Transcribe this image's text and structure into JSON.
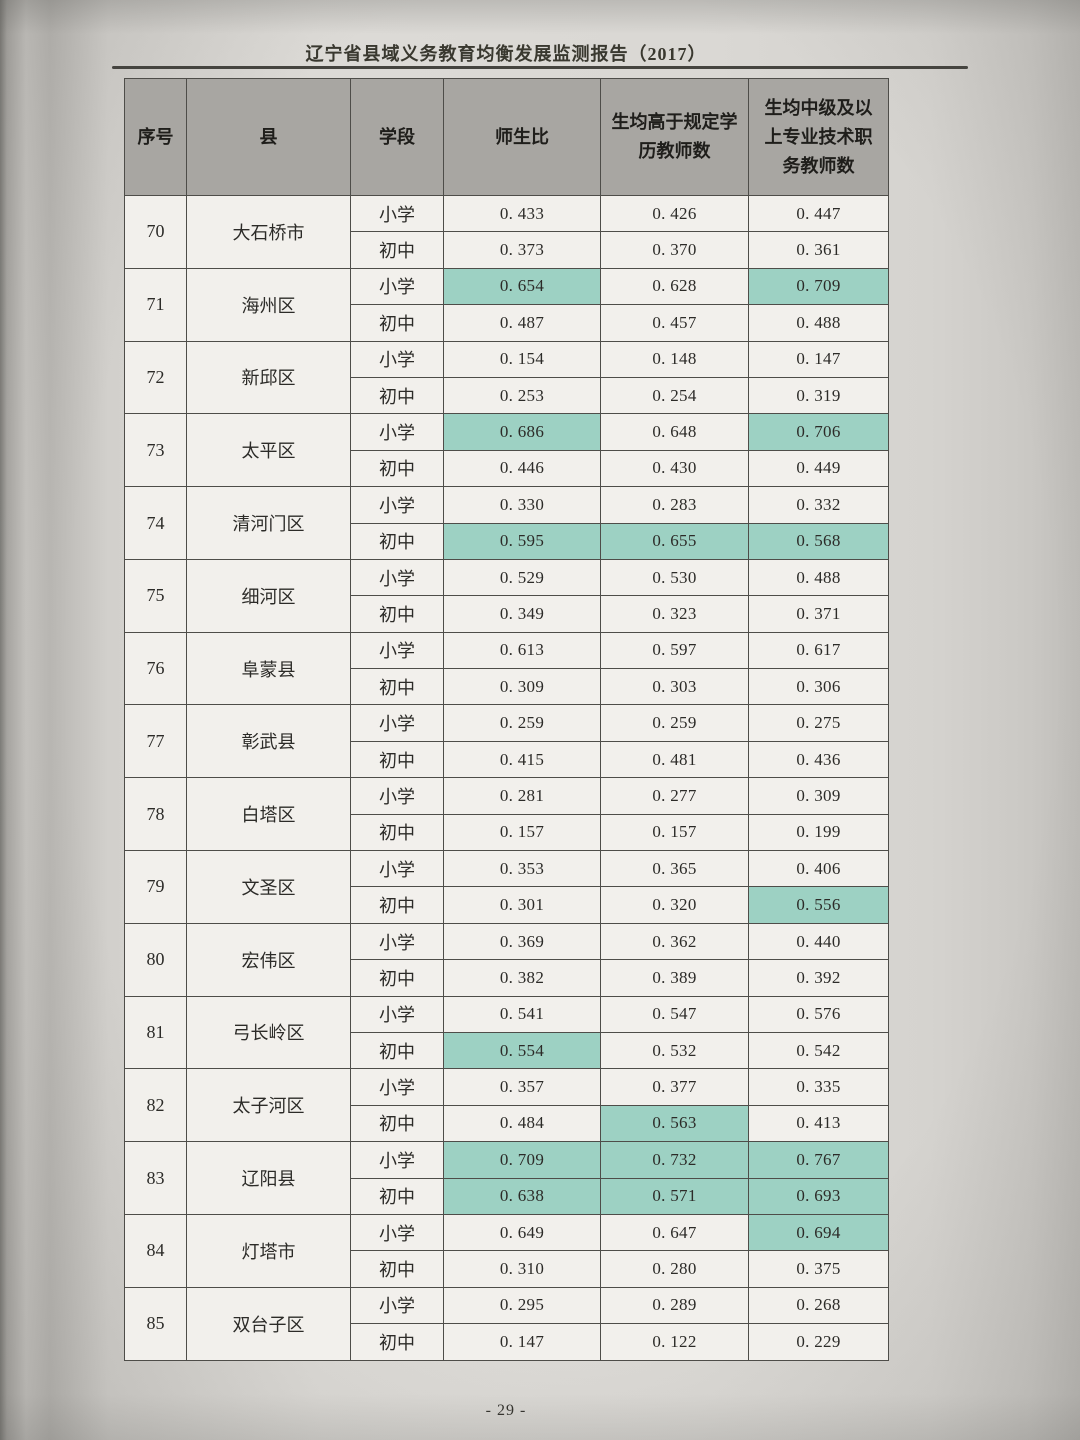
{
  "document": {
    "title": "辽宁省县域义务教育均衡发展监测报告（2017）",
    "page_number": "- 29 -"
  },
  "table": {
    "columns": [
      "序号",
      "县",
      "学段",
      "师生比",
      "生均高于规定学历教师数",
      "生均中级及以上专业技术职务教师数"
    ],
    "rows": [
      {
        "no": "70",
        "county": "大石桥市",
        "stages": [
          {
            "stage": "小学",
            "values": [
              "0. 433",
              "0. 426",
              "0. 447"
            ],
            "highlight": [
              false,
              false,
              false
            ]
          },
          {
            "stage": "初中",
            "values": [
              "0. 373",
              "0. 370",
              "0. 361"
            ],
            "highlight": [
              false,
              false,
              false
            ]
          }
        ]
      },
      {
        "no": "71",
        "county": "海州区",
        "stages": [
          {
            "stage": "小学",
            "values": [
              "0. 654",
              "0. 628",
              "0. 709"
            ],
            "highlight": [
              true,
              false,
              true
            ]
          },
          {
            "stage": "初中",
            "values": [
              "0. 487",
              "0. 457",
              "0. 488"
            ],
            "highlight": [
              false,
              false,
              false
            ]
          }
        ]
      },
      {
        "no": "72",
        "county": "新邱区",
        "stages": [
          {
            "stage": "小学",
            "values": [
              "0. 154",
              "0. 148",
              "0. 147"
            ],
            "highlight": [
              false,
              false,
              false
            ]
          },
          {
            "stage": "初中",
            "values": [
              "0. 253",
              "0. 254",
              "0. 319"
            ],
            "highlight": [
              false,
              false,
              false
            ]
          }
        ]
      },
      {
        "no": "73",
        "county": "太平区",
        "stages": [
          {
            "stage": "小学",
            "values": [
              "0. 686",
              "0. 648",
              "0. 706"
            ],
            "highlight": [
              true,
              false,
              true
            ]
          },
          {
            "stage": "初中",
            "values": [
              "0. 446",
              "0. 430",
              "0. 449"
            ],
            "highlight": [
              false,
              false,
              false
            ]
          }
        ]
      },
      {
        "no": "74",
        "county": "清河门区",
        "stages": [
          {
            "stage": "小学",
            "values": [
              "0. 330",
              "0. 283",
              "0. 332"
            ],
            "highlight": [
              false,
              false,
              false
            ]
          },
          {
            "stage": "初中",
            "values": [
              "0. 595",
              "0. 655",
              "0. 568"
            ],
            "highlight": [
              true,
              true,
              true
            ]
          }
        ]
      },
      {
        "no": "75",
        "county": "细河区",
        "stages": [
          {
            "stage": "小学",
            "values": [
              "0. 529",
              "0. 530",
              "0. 488"
            ],
            "highlight": [
              false,
              false,
              false
            ]
          },
          {
            "stage": "初中",
            "values": [
              "0. 349",
              "0. 323",
              "0. 371"
            ],
            "highlight": [
              false,
              false,
              false
            ]
          }
        ]
      },
      {
        "no": "76",
        "county": "阜蒙县",
        "stages": [
          {
            "stage": "小学",
            "values": [
              "0. 613",
              "0. 597",
              "0. 617"
            ],
            "highlight": [
              false,
              false,
              false
            ]
          },
          {
            "stage": "初中",
            "values": [
              "0. 309",
              "0. 303",
              "0. 306"
            ],
            "highlight": [
              false,
              false,
              false
            ]
          }
        ]
      },
      {
        "no": "77",
        "county": "彰武县",
        "stages": [
          {
            "stage": "小学",
            "values": [
              "0. 259",
              "0. 259",
              "0. 275"
            ],
            "highlight": [
              false,
              false,
              false
            ]
          },
          {
            "stage": "初中",
            "values": [
              "0. 415",
              "0. 481",
              "0. 436"
            ],
            "highlight": [
              false,
              false,
              false
            ]
          }
        ]
      },
      {
        "no": "78",
        "county": "白塔区",
        "stages": [
          {
            "stage": "小学",
            "values": [
              "0. 281",
              "0. 277",
              "0. 309"
            ],
            "highlight": [
              false,
              false,
              false
            ]
          },
          {
            "stage": "初中",
            "values": [
              "0. 157",
              "0. 157",
              "0. 199"
            ],
            "highlight": [
              false,
              false,
              false
            ]
          }
        ]
      },
      {
        "no": "79",
        "county": "文圣区",
        "stages": [
          {
            "stage": "小学",
            "values": [
              "0. 353",
              "0. 365",
              "0. 406"
            ],
            "highlight": [
              false,
              false,
              false
            ]
          },
          {
            "stage": "初中",
            "values": [
              "0. 301",
              "0. 320",
              "0. 556"
            ],
            "highlight": [
              false,
              false,
              true
            ]
          }
        ]
      },
      {
        "no": "80",
        "county": "宏伟区",
        "stages": [
          {
            "stage": "小学",
            "values": [
              "0. 369",
              "0. 362",
              "0. 440"
            ],
            "highlight": [
              false,
              false,
              false
            ]
          },
          {
            "stage": "初中",
            "values": [
              "0. 382",
              "0. 389",
              "0. 392"
            ],
            "highlight": [
              false,
              false,
              false
            ]
          }
        ]
      },
      {
        "no": "81",
        "county": "弓长岭区",
        "stages": [
          {
            "stage": "小学",
            "values": [
              "0. 541",
              "0. 547",
              "0. 576"
            ],
            "highlight": [
              false,
              false,
              false
            ]
          },
          {
            "stage": "初中",
            "values": [
              "0. 554",
              "0. 532",
              "0. 542"
            ],
            "highlight": [
              true,
              false,
              false
            ]
          }
        ]
      },
      {
        "no": "82",
        "county": "太子河区",
        "stages": [
          {
            "stage": "小学",
            "values": [
              "0. 357",
              "0. 377",
              "0. 335"
            ],
            "highlight": [
              false,
              false,
              false
            ]
          },
          {
            "stage": "初中",
            "values": [
              "0. 484",
              "0. 563",
              "0. 413"
            ],
            "highlight": [
              false,
              true,
              false
            ]
          }
        ]
      },
      {
        "no": "83",
        "county": "辽阳县",
        "stages": [
          {
            "stage": "小学",
            "values": [
              "0. 709",
              "0. 732",
              "0. 767"
            ],
            "highlight": [
              true,
              true,
              true
            ]
          },
          {
            "stage": "初中",
            "values": [
              "0. 638",
              "0. 571",
              "0. 693"
            ],
            "highlight": [
              true,
              true,
              true
            ]
          }
        ]
      },
      {
        "no": "84",
        "county": "灯塔市",
        "stages": [
          {
            "stage": "小学",
            "values": [
              "0. 649",
              "0. 647",
              "0. 694"
            ],
            "highlight": [
              false,
              false,
              true
            ]
          },
          {
            "stage": "初中",
            "values": [
              "0. 310",
              "0. 280",
              "0. 375"
            ],
            "highlight": [
              false,
              false,
              false
            ]
          }
        ]
      },
      {
        "no": "85",
        "county": "双台子区",
        "stages": [
          {
            "stage": "小学",
            "values": [
              "0. 295",
              "0. 289",
              "0. 268"
            ],
            "highlight": [
              false,
              false,
              false
            ]
          },
          {
            "stage": "初中",
            "values": [
              "0. 147",
              "0. 122",
              "0. 229"
            ],
            "highlight": [
              false,
              false,
              false
            ]
          }
        ]
      }
    ]
  },
  "colors": {
    "highlight_teal": "#9dd1c3",
    "header_gray": "#a8a6a2",
    "cell_bg": "#f2f0ec",
    "border_col": "#4e4d49",
    "page_bg": "#d7d5d1"
  }
}
